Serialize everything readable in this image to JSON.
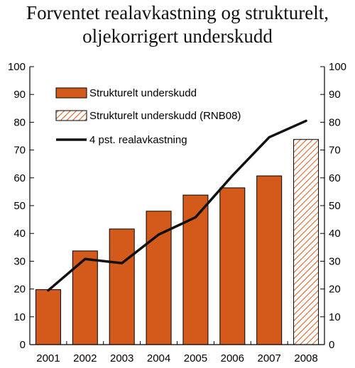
{
  "chart_data": {
    "type": "bar",
    "title_lines": [
      "Forventet realavkastning og strukturelt,",
      "oljekorrigert underskudd"
    ],
    "categories": [
      "2001",
      "2002",
      "2003",
      "2004",
      "2005",
      "2006",
      "2007",
      "2008"
    ],
    "ylim": [
      0,
      100
    ],
    "yticks": [
      0,
      10,
      20,
      30,
      40,
      50,
      60,
      70,
      80,
      90,
      100
    ],
    "grid": false,
    "legend_position": "top-left",
    "series": [
      {
        "name": "Strukturelt underskudd",
        "kind": "bar",
        "color": "#d45a1c",
        "values": [
          19.8,
          33.7,
          41.6,
          48.0,
          53.8,
          56.4,
          60.7,
          null
        ]
      },
      {
        "name": "Strukturelt underskudd (RNB08)",
        "kind": "bar-hatched",
        "color": "#d45a1c",
        "values": [
          null,
          null,
          null,
          null,
          null,
          null,
          null,
          73.8
        ]
      },
      {
        "name": "4 pst. realavkastning",
        "kind": "line",
        "color": "#111111",
        "values": [
          19.5,
          30.8,
          29.3,
          39.6,
          45.8,
          60.8,
          74.6,
          80.5
        ]
      }
    ]
  }
}
